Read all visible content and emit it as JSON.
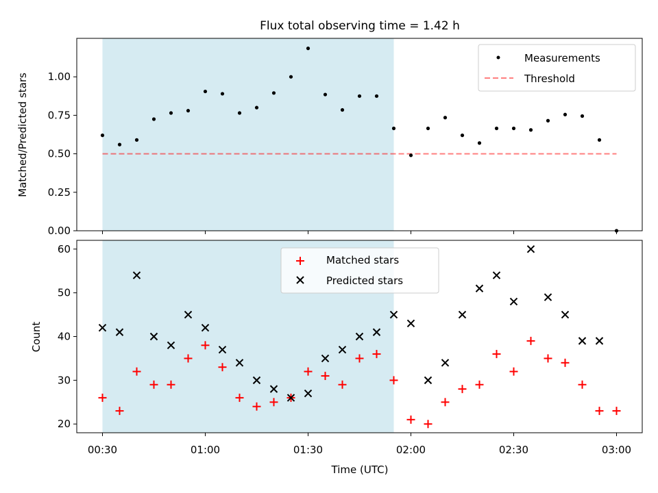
{
  "chart_data": [
    {
      "type": "scatter",
      "title": "Flux total observing time = 1.42 h",
      "xlabel": "",
      "ylabel": "Matched/Predicted stars",
      "ylim": [
        0,
        1.25
      ],
      "yticks": [
        0.0,
        0.25,
        0.5,
        0.75,
        1.0
      ],
      "ytick_labels": [
        "0.00",
        "0.25",
        "0.50",
        "0.75",
        "1.00"
      ],
      "shaded_span": {
        "start": "00:30",
        "end": "01:55",
        "color": "#add8e6"
      },
      "series": [
        {
          "name": "Measurements",
          "marker": "dot",
          "color": "#000000",
          "x": [
            "00:30",
            "00:35",
            "00:40",
            "00:45",
            "00:50",
            "00:55",
            "01:00",
            "01:05",
            "01:10",
            "01:15",
            "01:20",
            "01:25",
            "01:30",
            "01:35",
            "01:40",
            "01:45",
            "01:50",
            "01:55",
            "02:00",
            "02:05",
            "02:10",
            "02:15",
            "02:20",
            "02:25",
            "02:30",
            "02:35",
            "02:40",
            "02:45",
            "02:50",
            "02:55",
            "03:00"
          ],
          "y": [
            0.62,
            0.56,
            0.59,
            0.725,
            0.765,
            0.78,
            0.905,
            0.89,
            0.765,
            0.8,
            0.895,
            1.0,
            1.185,
            0.885,
            0.785,
            0.875,
            0.875,
            0.665,
            0.49,
            0.665,
            0.735,
            0.62,
            0.57,
            0.665,
            0.665,
            0.655,
            0.715,
            0.755,
            0.745,
            0.59,
            0.0
          ]
        },
        {
          "name": "Threshold",
          "marker": "dashed-line",
          "color": "#ff0000",
          "x": [
            "00:30",
            "03:00"
          ],
          "y": [
            0.5,
            0.5
          ]
        }
      ],
      "legend": "top-right"
    },
    {
      "type": "scatter",
      "xlabel": "Time (UTC)",
      "ylabel": "Count",
      "ylim": [
        18,
        62
      ],
      "yticks": [
        20,
        30,
        40,
        50,
        60
      ],
      "ytick_labels": [
        "20",
        "30",
        "40",
        "50",
        "60"
      ],
      "xlim": [
        "00:22.5",
        "03:07.5"
      ],
      "xticks": [
        "00:30",
        "01:00",
        "01:30",
        "02:00",
        "02:30",
        "03:00"
      ],
      "xtick_labels": [
        "00:30",
        "01:00",
        "01:30",
        "02:00",
        "02:30",
        "03:00"
      ],
      "shaded_span": {
        "start": "00:30",
        "end": "01:55",
        "color": "#add8e6"
      },
      "series": [
        {
          "name": "Matched stars",
          "marker": "plus",
          "color": "#ff0000",
          "x": [
            "00:30",
            "00:35",
            "00:40",
            "00:45",
            "00:50",
            "00:55",
            "01:00",
            "01:05",
            "01:10",
            "01:15",
            "01:20",
            "01:25",
            "01:30",
            "01:35",
            "01:40",
            "01:45",
            "01:50",
            "01:55",
            "02:00",
            "02:05",
            "02:10",
            "02:15",
            "02:20",
            "02:25",
            "02:30",
            "02:35",
            "02:40",
            "02:45",
            "02:50",
            "02:55",
            "03:00"
          ],
          "y": [
            26,
            23,
            32,
            29,
            29,
            35,
            38,
            33,
            26,
            24,
            25,
            26,
            32,
            31,
            29,
            35,
            36,
            30,
            21,
            20,
            25,
            28,
            29,
            36,
            32,
            39,
            35,
            34,
            29,
            23,
            23
          ]
        },
        {
          "name": "Predicted stars",
          "marker": "x",
          "color": "#000000",
          "x": [
            "00:30",
            "00:35",
            "00:40",
            "00:45",
            "00:50",
            "00:55",
            "01:00",
            "01:05",
            "01:10",
            "01:15",
            "01:20",
            "01:25",
            "01:30",
            "01:35",
            "01:40",
            "01:45",
            "01:50",
            "01:55",
            "02:00",
            "02:05",
            "02:10",
            "02:15",
            "02:20",
            "02:25",
            "02:30",
            "02:35",
            "02:40",
            "02:45",
            "02:50",
            "02:55"
          ],
          "y": [
            42,
            41,
            54,
            40,
            38,
            45,
            42,
            37,
            34,
            30,
            28,
            26,
            27,
            35,
            37,
            40,
            41,
            45,
            43,
            30,
            34,
            45,
            51,
            54,
            48,
            60,
            49,
            45,
            39,
            39
          ]
        }
      ],
      "legend": "top-center"
    }
  ]
}
